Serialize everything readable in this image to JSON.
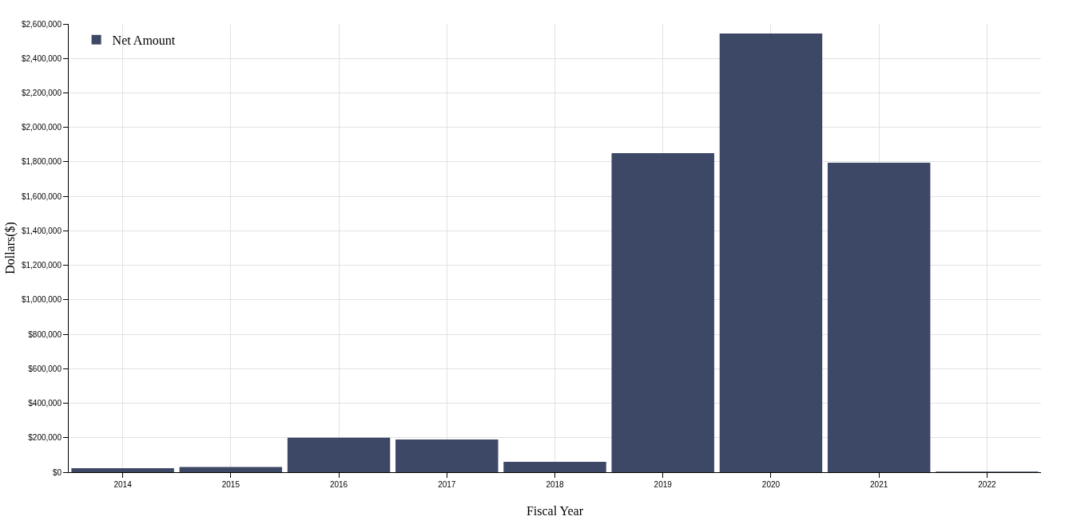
{
  "chart_data": {
    "type": "bar",
    "xlabel": "Fiscal Year",
    "ylabel": "Dollars($)",
    "categories": [
      "2014",
      "2015",
      "2016",
      "2017",
      "2018",
      "2019",
      "2020",
      "2021",
      "2022"
    ],
    "series": [
      {
        "name": "Net Amount",
        "color": "#3d4866",
        "values": [
          23000,
          30000,
          200000,
          190000,
          60000,
          1850000,
          2545000,
          1795000,
          3000
        ]
      }
    ],
    "ylim": [
      0,
      2600000
    ],
    "yticks": [
      {
        "value": 0,
        "label": "$0"
      },
      {
        "value": 200000,
        "label": "$200,000"
      },
      {
        "value": 400000,
        "label": "$400,000"
      },
      {
        "value": 600000,
        "label": "$600,000"
      },
      {
        "value": 800000,
        "label": "$800,000"
      },
      {
        "value": 1000000,
        "label": "$1,000,000"
      },
      {
        "value": 1200000,
        "label": "$1,200,000"
      },
      {
        "value": 1400000,
        "label": "$1,400,000"
      },
      {
        "value": 1600000,
        "label": "$1,600,000"
      },
      {
        "value": 1800000,
        "label": "$1,800,000"
      },
      {
        "value": 2000000,
        "label": "$2,000,000"
      },
      {
        "value": 2200000,
        "label": "$2,200,000"
      },
      {
        "value": 2400000,
        "label": "$2,400,000"
      },
      {
        "value": 2600000,
        "label": "$2,600,000"
      }
    ],
    "grid": true,
    "legend": "top left"
  }
}
